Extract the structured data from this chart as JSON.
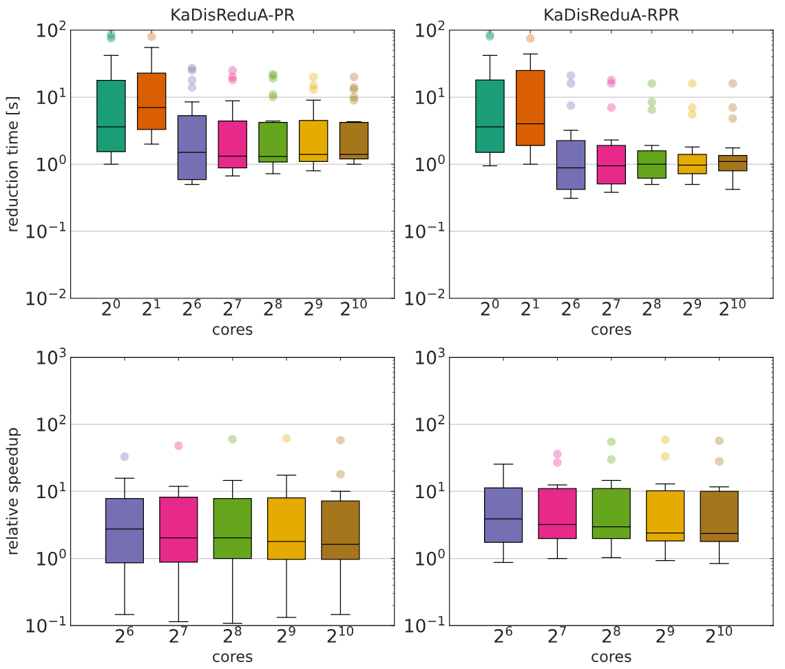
{
  "chart_data": [
    {
      "type": "box",
      "title": "KaDisReduA-PR",
      "xlabel": "cores",
      "ylabel": "reduction time [s]",
      "categories": [
        "2$^{0}$",
        "2$^{1}$",
        "2$^{6}$",
        "2$^{7}$",
        "2$^{8}$",
        "2$^{9}$",
        "2$^{10}$"
      ],
      "colors": [
        "#1b9e77",
        "#d95f02",
        "#7570b3",
        "#e7298a",
        "#66a61e",
        "#e6ab02",
        "#a6761d"
      ],
      "log": true,
      "grid": "y",
      "legend": false,
      "ylim": [
        0.01,
        100
      ],
      "yticks": [
        {
          "value": 0.01,
          "label": "10$^{−2}$"
        },
        {
          "value": 0.1,
          "label": "10$^{−1}$"
        },
        {
          "value": 1,
          "label": "10$^{0}$"
        },
        {
          "value": 10,
          "label": "10$^{1}$"
        },
        {
          "value": 100,
          "label": "10$^{2}$"
        }
      ],
      "boxes": [
        {
          "low": 1.0,
          "q1": 1.54,
          "median": 3.6,
          "q3": 17.8,
          "high": 42,
          "outliers": [
            75,
            80,
            87
          ]
        },
        {
          "low": 2.0,
          "q1": 3.3,
          "median": 7.0,
          "q3": 22.8,
          "high": 55,
          "outliers": [
            80
          ]
        },
        {
          "low": 0.5,
          "q1": 0.59,
          "median": 1.5,
          "q3": 5.3,
          "high": 8.5,
          "outliers": [
            14,
            18,
            25,
            27
          ]
        },
        {
          "low": 0.67,
          "q1": 0.88,
          "median": 1.32,
          "q3": 4.4,
          "high": 8.8,
          "outliers": [
            18,
            20,
            25
          ]
        },
        {
          "low": 0.72,
          "q1": 1.08,
          "median": 1.3,
          "q3": 4.2,
          "high": 4.4,
          "outliers": [
            10,
            11,
            19,
            21,
            22
          ]
        },
        {
          "low": 0.8,
          "q1": 1.1,
          "median": 1.4,
          "q3": 4.5,
          "high": 9.0,
          "outliers": [
            13,
            15,
            20
          ]
        },
        {
          "low": 1.0,
          "q1": 1.2,
          "median": 1.4,
          "q3": 4.2,
          "high": 4.3,
          "outliers": [
            9,
            10,
            13,
            14,
            20
          ]
        }
      ]
    },
    {
      "type": "box",
      "title": "KaDisReduA-RPR",
      "xlabel": "cores",
      "categories": [
        "2$^{0}$",
        "2$^{1}$",
        "2$^{6}$",
        "2$^{7}$",
        "2$^{8}$",
        "2$^{9}$",
        "2$^{10}$"
      ],
      "colors": [
        "#1b9e77",
        "#d95f02",
        "#7570b3",
        "#e7298a",
        "#66a61e",
        "#e6ab02",
        "#a6761d"
      ],
      "log": true,
      "grid": "y",
      "legend": false,
      "ylim": [
        0.01,
        100
      ],
      "yticks": [
        {
          "value": 0.01,
          "label": "10$^{−2}$"
        },
        {
          "value": 0.1,
          "label": "10$^{−1}$"
        },
        {
          "value": 1,
          "label": "10$^{0}$"
        },
        {
          "value": 10,
          "label": "10$^{1}$"
        },
        {
          "value": 100,
          "label": "10$^{2}$"
        }
      ],
      "boxes": [
        {
          "low": 0.95,
          "q1": 1.5,
          "median": 3.6,
          "q3": 18,
          "high": 42,
          "outliers": [
            80,
            85
          ]
        },
        {
          "low": 1.0,
          "q1": 1.9,
          "median": 4.0,
          "q3": 25,
          "high": 44,
          "outliers": [
            75
          ]
        },
        {
          "low": 0.31,
          "q1": 0.42,
          "median": 0.88,
          "q3": 2.24,
          "high": 3.2,
          "outliers": [
            7.5,
            16,
            21
          ]
        },
        {
          "low": 0.38,
          "q1": 0.51,
          "median": 0.95,
          "q3": 1.9,
          "high": 2.3,
          "outliers": [
            7,
            16,
            18
          ]
        },
        {
          "low": 0.5,
          "q1": 0.62,
          "median": 1.0,
          "q3": 1.58,
          "high": 1.9,
          "outliers": [
            6.5,
            8.5,
            16
          ]
        },
        {
          "low": 0.5,
          "q1": 0.72,
          "median": 0.97,
          "q3": 1.4,
          "high": 1.8,
          "outliers": [
            5.5,
            7,
            16
          ]
        },
        {
          "low": 0.42,
          "q1": 0.8,
          "median": 1.1,
          "q3": 1.35,
          "high": 1.75,
          "outliers": [
            4.8,
            7,
            16
          ]
        }
      ]
    },
    {
      "type": "box",
      "xlabel": "cores",
      "ylabel": "relative speedup",
      "categories": [
        "2$^{6}$",
        "2$^{7}$",
        "2$^{8}$",
        "2$^{9}$",
        "2$^{10}$"
      ],
      "colors": [
        "#7570b3",
        "#e7298a",
        "#66a61e",
        "#e6ab02",
        "#a6761d"
      ],
      "log": true,
      "grid": "y",
      "legend": false,
      "ylim": [
        0.1,
        1000
      ],
      "yticks": [
        {
          "value": 0.1,
          "label": "10$^{−1}$"
        },
        {
          "value": 1,
          "label": "10$^{0}$"
        },
        {
          "value": 10,
          "label": "10$^{1}$"
        },
        {
          "value": 100,
          "label": "10$^{2}$"
        },
        {
          "value": 1000,
          "label": "10$^{3}$"
        }
      ],
      "boxes": [
        {
          "low": 0.146,
          "q1": 0.86,
          "median": 2.75,
          "q3": 7.8,
          "high": 15.7,
          "outliers": [
            33
          ]
        },
        {
          "low": 0.114,
          "q1": 0.88,
          "median": 2.03,
          "q3": 8.2,
          "high": 11.9,
          "outliers": [
            48
          ]
        },
        {
          "low": 0.108,
          "q1": 1.0,
          "median": 2.03,
          "q3": 7.8,
          "high": 14.6,
          "outliers": [
            60
          ]
        },
        {
          "low": 0.132,
          "q1": 0.97,
          "median": 1.79,
          "q3": 8.0,
          "high": 17.5,
          "outliers": [
            62
          ]
        },
        {
          "low": 0.146,
          "q1": 0.97,
          "median": 1.62,
          "q3": 7.2,
          "high": 10,
          "outliers": [
            18,
            58
          ]
        }
      ]
    },
    {
      "type": "box",
      "xlabel": "cores",
      "categories": [
        "2$^{6}$",
        "2$^{7}$",
        "2$^{8}$",
        "2$^{9}$",
        "2$^{10}$"
      ],
      "colors": [
        "#7570b3",
        "#e7298a",
        "#66a61e",
        "#e6ab02",
        "#a6761d"
      ],
      "log": true,
      "grid": "y",
      "legend": false,
      "ylim": [
        0.1,
        1000
      ],
      "yticks": [
        {
          "value": 0.1,
          "label": "10$^{−1}$"
        },
        {
          "value": 1,
          "label": "10$^{0}$"
        },
        {
          "value": 10,
          "label": "10$^{1}$"
        },
        {
          "value": 100,
          "label": "10$^{2}$"
        },
        {
          "value": 1000,
          "label": "10$^{3}$"
        }
      ],
      "boxes": [
        {
          "low": 0.87,
          "q1": 1.74,
          "median": 3.9,
          "q3": 11.3,
          "high": 25.5
        },
        {
          "low": 1.0,
          "q1": 1.98,
          "median": 3.2,
          "q3": 11,
          "high": 12.5,
          "outliers": [
            27,
            36
          ]
        },
        {
          "low": 1.03,
          "q1": 1.98,
          "median": 2.97,
          "q3": 11,
          "high": 14.6,
          "outliers": [
            30,
            55
          ]
        },
        {
          "low": 0.93,
          "q1": 1.83,
          "median": 2.4,
          "q3": 10.2,
          "high": 12.9,
          "outliers": [
            33,
            59
          ]
        },
        {
          "low": 0.84,
          "q1": 1.79,
          "median": 2.36,
          "q3": 10,
          "high": 11.7,
          "outliers": [
            28,
            57
          ]
        }
      ]
    }
  ]
}
